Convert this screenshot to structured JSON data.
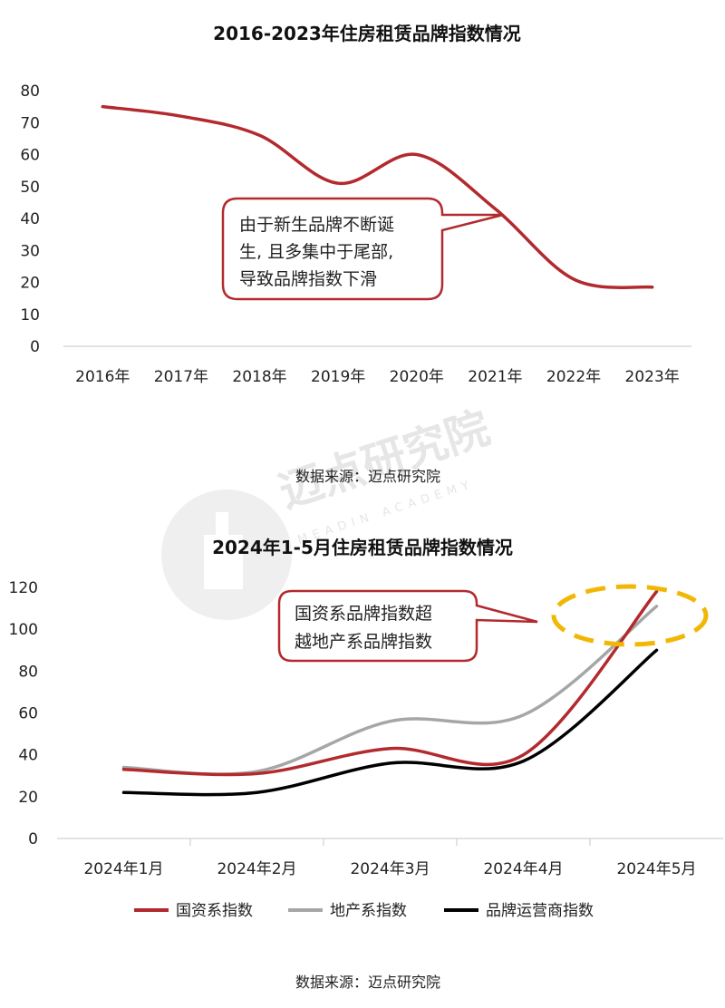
{
  "watermark": {
    "text": "迈点研究院",
    "sub": "MEADIN ACADEMY"
  },
  "chart_data": [
    {
      "type": "line",
      "title": "2016-2023年住房租赁品牌指数情况",
      "categories": [
        "2016年",
        "2017年",
        "2018年",
        "2019年",
        "2020年",
        "2021年",
        "2022年",
        "2023年"
      ],
      "series": [
        {
          "values": [
            75,
            72,
            66,
            51,
            60,
            43,
            21,
            18.5
          ]
        }
      ],
      "ylim": [
        0,
        80
      ],
      "yticks": [
        "0",
        "10",
        "20",
        "30",
        "40",
        "50",
        "60",
        "70",
        "80"
      ],
      "grid": false,
      "annotation": {
        "lines": [
          "由于新生品牌不断诞",
          "生, 且多集中于尾部,",
          "导致品牌指数下滑"
        ]
      },
      "source": "数据来源：迈点研究院",
      "colors": [
        "#b22a2e"
      ]
    },
    {
      "type": "line",
      "title": "2024年1-5月住房租赁品牌指数情况",
      "categories": [
        "2024年1月",
        "2024年2月",
        "2024年3月",
        "2024年4月",
        "2024年5月"
      ],
      "series": [
        {
          "name": "国资系指数",
          "values": [
            33,
            31,
            43,
            40,
            118
          ],
          "color": "#b22a2e"
        },
        {
          "name": "地产系指数",
          "values": [
            34,
            32,
            56,
            59,
            111
          ],
          "color": "#a6a6a6"
        },
        {
          "name": "品牌运营商指数",
          "values": [
            22,
            22,
            36,
            37,
            90
          ],
          "color": "#000000"
        }
      ],
      "ylim": [
        0,
        120
      ],
      "yticks": [
        "0",
        "20",
        "40",
        "60",
        "80",
        "100",
        "120"
      ],
      "grid": false,
      "legend": "bottom",
      "annotation": {
        "lines": [
          "国资系品牌指数超",
          "越地产系品牌指数"
        ]
      },
      "source": "数据来源：迈点研究院"
    }
  ]
}
